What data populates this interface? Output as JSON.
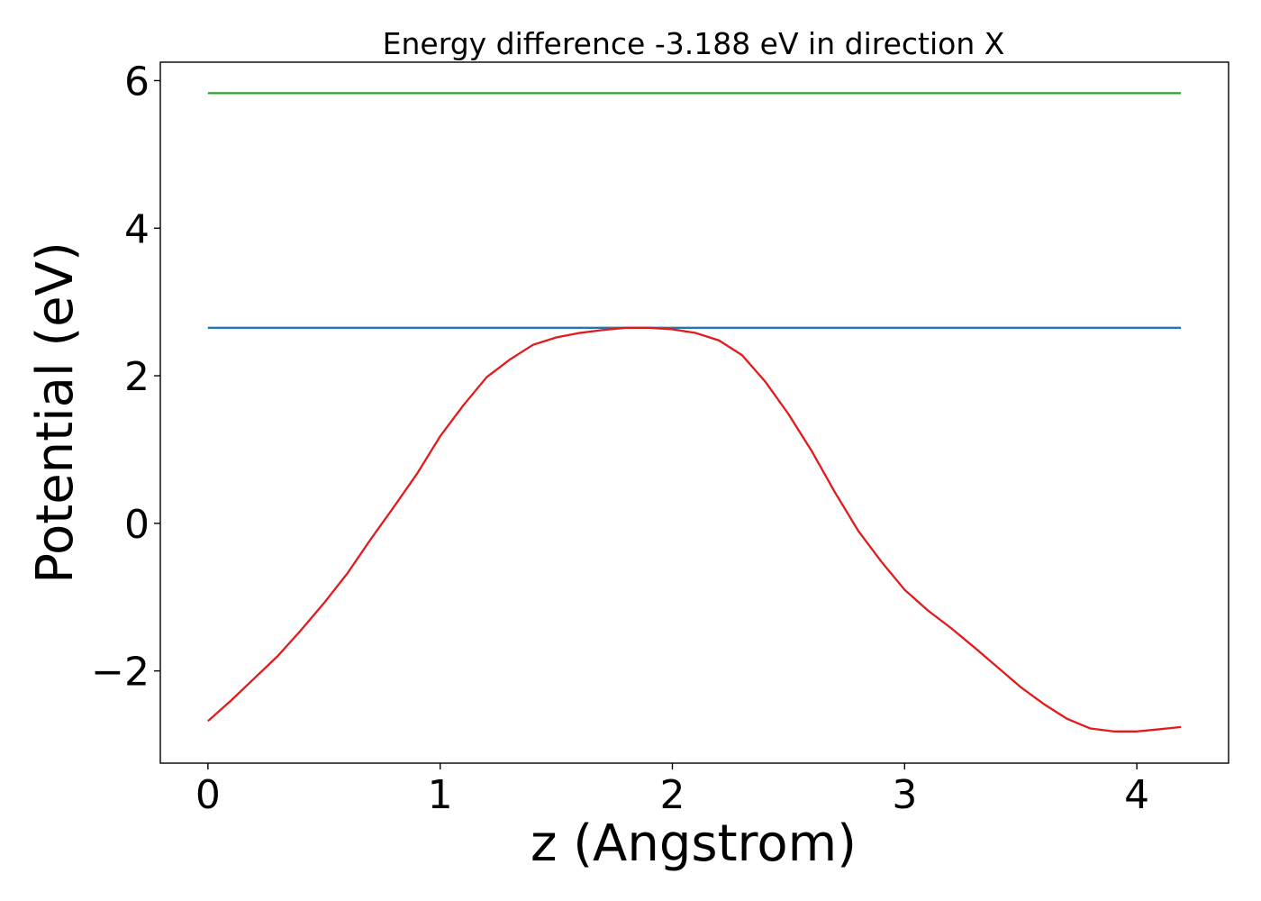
{
  "chart_data": {
    "type": "line",
    "title": "Energy difference -3.188 eV in direction X",
    "xlabel": "z (Angstrom)",
    "ylabel": "Potential (eV)",
    "xlim": [
      -0.205,
      4.395
    ],
    "ylim": [
      -3.25,
      6.25
    ],
    "xticks": [
      0,
      1,
      2,
      3,
      4
    ],
    "xtick_labels": [
      "0",
      "1",
      "2",
      "3",
      "4"
    ],
    "yticks": [
      -2,
      0,
      2,
      4,
      6
    ],
    "ytick_labels": [
      "−2",
      "0",
      "2",
      "4",
      "6"
    ],
    "grid": false,
    "legend": false,
    "series": [
      {
        "color": "#2ca02c",
        "x": [
          0,
          4.19
        ],
        "y": [
          5.83,
          5.83
        ]
      },
      {
        "color": "#1f77b4",
        "x": [
          0,
          4.19
        ],
        "y": [
          2.65,
          2.65
        ]
      },
      {
        "color": "#e31a1c",
        "x": [
          0.0,
          0.1,
          0.2,
          0.3,
          0.4,
          0.5,
          0.6,
          0.7,
          0.8,
          0.9,
          1.0,
          1.1,
          1.2,
          1.3,
          1.4,
          1.5,
          1.6,
          1.7,
          1.8,
          1.9,
          2.0,
          2.1,
          2.2,
          2.3,
          2.4,
          2.5,
          2.6,
          2.7,
          2.8,
          2.9,
          3.0,
          3.1,
          3.2,
          3.3,
          3.4,
          3.5,
          3.6,
          3.7,
          3.8,
          3.9,
          4.0,
          4.1,
          4.19
        ],
        "y": [
          -2.68,
          -2.4,
          -2.1,
          -1.8,
          -1.45,
          -1.08,
          -0.68,
          -0.22,
          0.22,
          0.67,
          1.18,
          1.6,
          1.98,
          2.22,
          2.42,
          2.52,
          2.58,
          2.62,
          2.65,
          2.65,
          2.63,
          2.58,
          2.48,
          2.28,
          1.92,
          1.48,
          0.98,
          0.42,
          -0.1,
          -0.52,
          -0.9,
          -1.18,
          -1.42,
          -1.68,
          -1.95,
          -2.22,
          -2.45,
          -2.65,
          -2.78,
          -2.82,
          -2.82,
          -2.79,
          -2.76
        ]
      }
    ]
  }
}
